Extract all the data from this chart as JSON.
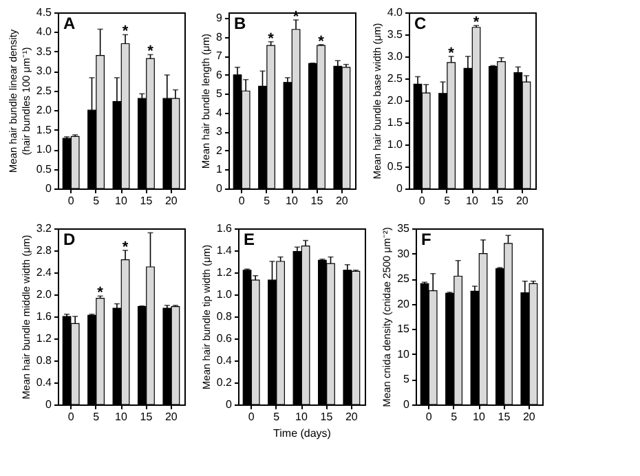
{
  "chart_data": [
    {
      "type": "bar",
      "title": "A",
      "ylabel": "Mean hair bundle linear density\n(hair bundles 100 μm⁻¹)",
      "categories": [
        "0",
        "5",
        "10",
        "15",
        "20"
      ],
      "ylim": [
        0,
        4.5
      ],
      "yticks": [
        0,
        0.5,
        {
          "value": 1,
          "label": "1.0"
        },
        1.5,
        {
          "value": 2,
          "label": "2.0"
        },
        2.5,
        {
          "value": 3,
          "label": "3.0"
        },
        3.5,
        {
          "value": 4,
          "label": "4.0"
        },
        4.5
      ],
      "grid": false,
      "legend": false,
      "series": [
        {
          "color": "#000000",
          "values": [
            1.28,
            2.0,
            2.22,
            2.3,
            2.3
          ],
          "errors": [
            [
              1.28,
              1.32
            ],
            [
              2.0,
              2.83
            ],
            [
              2.22,
              2.83
            ],
            [
              2.3,
              2.42
            ],
            [
              2.3,
              2.9
            ]
          ]
        },
        {
          "color": "#d9d9d9",
          "values": [
            1.33,
            3.4,
            3.7,
            3.32,
            2.3
          ],
          "errors": [
            [
              1.33,
              1.37
            ],
            [
              3.4,
              4.07
            ],
            [
              3.7,
              3.93
            ],
            [
              3.32,
              3.42
            ],
            [
              2.3,
              2.52
            ]
          ]
        }
      ],
      "annotations": [
        {
          "text": "*",
          "x": "10",
          "y": 3.93
        },
        {
          "text": "*",
          "x": "15",
          "y": 3.42
        }
      ]
    },
    {
      "type": "bar",
      "title": "B",
      "ylabel": "Mean hair bundle length (μm)",
      "categories": [
        "0",
        "5",
        "10",
        "15",
        "20"
      ],
      "ylim": [
        0,
        9.3
      ],
      "yticks": [
        0,
        1,
        2,
        3,
        4,
        5,
        6,
        7,
        8,
        9
      ],
      "grid": false,
      "legend": false,
      "series": [
        {
          "color": "#000000",
          "values": [
            6.0,
            5.4,
            5.6,
            6.6,
            6.45
          ],
          "errors": [
            [
              6.0,
              6.4
            ],
            [
              5.4,
              6.2
            ],
            [
              5.6,
              5.85
            ],
            [
              6.6,
              6.62
            ],
            [
              6.45,
              6.75
            ]
          ]
        },
        {
          "color": "#d9d9d9",
          "values": [
            5.15,
            7.55,
            8.4,
            7.55,
            6.4
          ],
          "errors": [
            [
              5.15,
              5.75
            ],
            [
              7.55,
              7.75
            ],
            [
              8.4,
              8.9
            ],
            [
              7.55,
              7.6
            ],
            [
              6.4,
              6.55
            ]
          ]
        }
      ],
      "annotations": [
        {
          "text": "*",
          "x": "5",
          "y": 7.75
        },
        {
          "text": "*",
          "x": "10",
          "y": 8.9
        },
        {
          "text": "*",
          "x": "15",
          "y": 7.6
        }
      ]
    },
    {
      "type": "bar",
      "title": "C",
      "ylabel": "Mean hair bundle base width (μm)",
      "categories": [
        "0",
        "5",
        "10",
        "15",
        "20"
      ],
      "ylim": [
        0,
        4
      ],
      "yticks": [
        0,
        0.5,
        {
          "value": 1,
          "label": "1.0"
        },
        1.5,
        {
          "value": 2,
          "label": "2.0"
        },
        2.5,
        {
          "value": 3,
          "label": "3.0"
        },
        3.5,
        {
          "value": 4,
          "label": "4.0"
        }
      ],
      "grid": false,
      "legend": false,
      "series": [
        {
          "color": "#000000",
          "values": [
            2.37,
            2.16,
            2.73,
            2.77,
            2.63
          ],
          "errors": [
            [
              2.37,
              2.54
            ],
            [
              2.16,
              2.42
            ],
            [
              2.73,
              3.0
            ],
            [
              2.77,
              2.79
            ],
            [
              2.63,
              2.76
            ]
          ]
        },
        {
          "color": "#d9d9d9",
          "values": [
            2.17,
            2.86,
            3.66,
            2.88,
            2.42
          ],
          "errors": [
            [
              2.17,
              2.36
            ],
            [
              2.86,
              3.0
            ],
            [
              3.66,
              3.7
            ],
            [
              2.88,
              2.97
            ],
            [
              2.42,
              2.56
            ]
          ]
        }
      ],
      "annotations": [
        {
          "text": "*",
          "x": "5",
          "y": 3.0
        },
        {
          "text": "*",
          "x": "10",
          "y": 3.7
        }
      ]
    },
    {
      "type": "bar",
      "title": "D",
      "ylabel": "Mean hair bundle middle width (μm)",
      "categories": [
        "0",
        "5",
        "10",
        "15",
        "20"
      ],
      "ylim": [
        0,
        3.2
      ],
      "yticks": [
        0,
        0.4,
        0.8,
        1.2,
        1.6,
        {
          "value": 2,
          "label": "2.0"
        },
        2.4,
        2.8,
        3.2
      ],
      "grid": false,
      "legend": false,
      "series": [
        {
          "color": "#000000",
          "values": [
            1.6,
            1.62,
            1.75,
            1.78,
            1.75
          ],
          "errors": [
            [
              1.6,
              1.64
            ],
            [
              1.62,
              1.64
            ],
            [
              1.75,
              1.83
            ],
            [
              1.78,
              1.79
            ],
            [
              1.75,
              1.8
            ]
          ]
        },
        {
          "color": "#d9d9d9",
          "values": [
            1.47,
            1.93,
            2.63,
            2.5,
            1.78
          ],
          "errors": [
            [
              1.47,
              1.6
            ],
            [
              1.93,
              1.97
            ],
            [
              2.63,
              2.8
            ],
            [
              2.5,
              3.12
            ],
            [
              1.78,
              1.8
            ]
          ]
        }
      ],
      "annotations": [
        {
          "text": "*",
          "x": "5",
          "y": 1.97
        },
        {
          "text": "*",
          "x": "10",
          "y": 2.8
        }
      ]
    },
    {
      "type": "bar",
      "title": "E",
      "xlabel": "Time (days)",
      "ylabel": "Mean hair bundle tip width (μm)",
      "categories": [
        "0",
        "5",
        "10",
        "15",
        "20"
      ],
      "ylim": [
        0,
        1.6
      ],
      "yticks": [
        0,
        0.2,
        0.4,
        0.6,
        0.8,
        {
          "value": 1,
          "label": "1.0"
        },
        1.2,
        1.4,
        1.6
      ],
      "grid": false,
      "legend": false,
      "series": [
        {
          "color": "#000000",
          "values": [
            1.22,
            1.13,
            1.39,
            1.31,
            1.22
          ],
          "errors": [
            [
              1.22,
              1.23
            ],
            [
              1.13,
              1.3
            ],
            [
              1.39,
              1.43
            ],
            [
              1.31,
              1.32
            ],
            [
              1.22,
              1.27
            ]
          ]
        },
        {
          "color": "#d9d9d9",
          "values": [
            1.13,
            1.3,
            1.44,
            1.28,
            1.21
          ],
          "errors": [
            [
              1.13,
              1.17
            ],
            [
              1.3,
              1.34
            ],
            [
              1.44,
              1.49
            ],
            [
              1.28,
              1.34
            ],
            [
              1.21,
              1.22
            ]
          ]
        }
      ]
    },
    {
      "type": "bar",
      "title": "F",
      "ylabel": "Mean cnida density (cnidae 2500 μm⁻²)",
      "categories": [
        "0",
        "5",
        "10",
        "15",
        "20"
      ],
      "ylim": [
        0,
        35
      ],
      "yticks": [
        0,
        5,
        10,
        15,
        20,
        25,
        30,
        35
      ],
      "grid": false,
      "legend": false,
      "series": [
        {
          "color": "#000000",
          "values": [
            24,
            22.1,
            22.5,
            27,
            22.2
          ],
          "errors": [
            [
              24,
              24.3
            ],
            [
              22.1,
              22.3
            ],
            [
              22.5,
              23.5
            ],
            [
              27,
              27.2
            ],
            [
              22.2,
              24.5
            ]
          ]
        },
        {
          "color": "#d9d9d9",
          "values": [
            22.6,
            25.5,
            30,
            32,
            24
          ],
          "errors": [
            [
              22.6,
              26
            ],
            [
              25.5,
              28.6
            ],
            [
              30,
              32.7
            ],
            [
              32,
              33.6
            ],
            [
              24,
              24.5
            ]
          ]
        }
      ]
    }
  ]
}
